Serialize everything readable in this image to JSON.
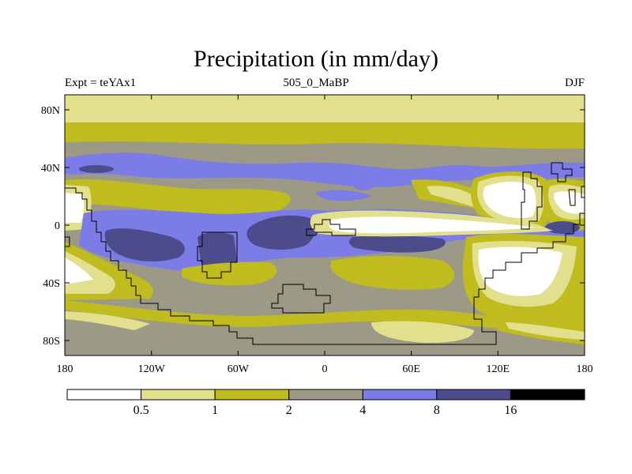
{
  "title": "Precipitation (in mm/day)",
  "subtitle_left": "Expt = teYAx1",
  "subtitle_center": "505_0_MaBP",
  "subtitle_right": "DJF",
  "lat_labels": [
    "80N",
    "40N",
    "0",
    "40S",
    "80S"
  ],
  "lon_labels": [
    "180",
    "120W",
    "60W",
    "0",
    "60E",
    "120E",
    "180"
  ],
  "colorbar": {
    "labels": [
      "0.5",
      "1",
      "2",
      "4",
      "8",
      "16"
    ],
    "colors": [
      "#ffffff",
      "#e2e08c",
      "#c0bc20",
      "#9c9a86",
      "#7c7ce6",
      "#4c4c8c",
      "#000000"
    ]
  },
  "colors": {
    "c0": "#ffffff",
    "c1": "#e2e08c",
    "c2": "#c0bc20",
    "c3": "#9c9a86",
    "c4": "#7c7ce6",
    "c5": "#4c4c8c"
  }
}
